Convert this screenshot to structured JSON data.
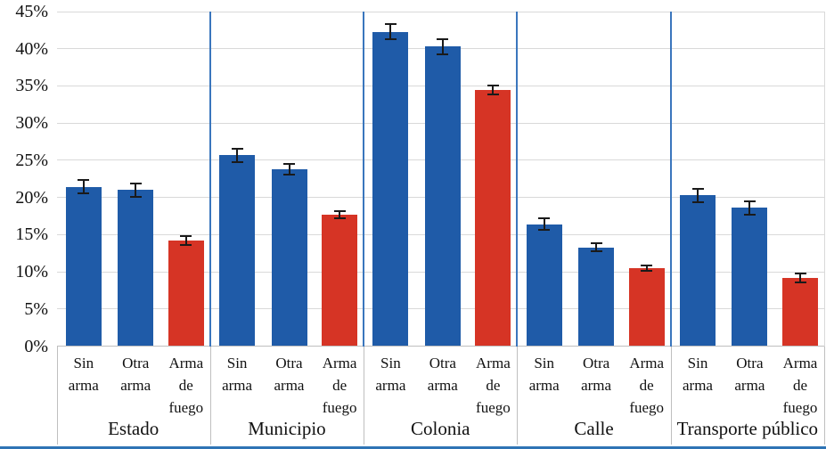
{
  "chart_data": {
    "type": "bar",
    "title": "",
    "xlabel": "",
    "ylabel": "",
    "legend": "none",
    "grid": "horizontal",
    "error_bars": true,
    "categories": [
      "Estado",
      "Municipio",
      "Colonia",
      "Calle",
      "Transporte público"
    ],
    "series": [
      {
        "name": "Sin arma",
        "label_lines": [
          "Sin",
          "arma"
        ],
        "color": "#1f5ba8",
        "values": [
          21.4,
          25.7,
          42.3,
          16.4,
          20.3
        ],
        "errors": [
          0.9,
          0.9,
          1.0,
          0.8,
          0.9
        ]
      },
      {
        "name": "Otra arma",
        "label_lines": [
          "Otra",
          "arma"
        ],
        "color": "#1f5ba8",
        "values": [
          21.0,
          23.8,
          40.3,
          13.3,
          18.6
        ],
        "errors": [
          0.9,
          0.7,
          1.0,
          0.5,
          0.9
        ]
      },
      {
        "name": "Arma de fuego",
        "label_lines": [
          "Arma",
          "de",
          "fuego"
        ],
        "color": "#d63425",
        "values": [
          14.2,
          17.7,
          34.5,
          10.5,
          9.2
        ],
        "errors": [
          0.6,
          0.5,
          0.6,
          0.4,
          0.6
        ]
      }
    ],
    "y_axis": {
      "min": 0,
      "max": 45,
      "step": 5,
      "tick_labels": [
        "0%",
        "5%",
        "10%",
        "15%",
        "20%",
        "25%",
        "30%",
        "35%",
        "40%",
        "45%"
      ]
    },
    "colors": {
      "separator": "#3a76bd",
      "gridline": "#d9d9d9",
      "axis_line": "#bfbfbf",
      "error_bar": "#1a1a1a",
      "bottom_rule": "#2e74b5"
    }
  }
}
